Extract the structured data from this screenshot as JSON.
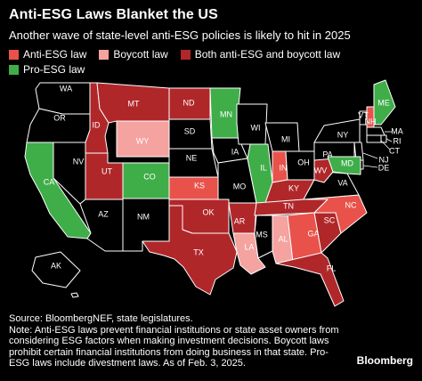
{
  "header": {
    "title": "Anti-ESG Laws Blanket the US",
    "subtitle": "Another wave of state-level anti-ESG policies is likely to hit in 2025"
  },
  "legend": [
    {
      "key": "anti",
      "label": "Anti-ESG law",
      "color": "#e8524a"
    },
    {
      "key": "boycott",
      "label": "Boycott law",
      "color": "#f4a3a0"
    },
    {
      "key": "both",
      "label": "Both anti-ESG and boycott law",
      "color": "#b0272a"
    },
    {
      "key": "pro",
      "label": "Pro-ESG law",
      "color": "#3fae49"
    }
  ],
  "colors": {
    "none": "#000000",
    "border": "#ffffff",
    "background": "#000000"
  },
  "states": [
    {
      "abbr": "WA",
      "cat": "none"
    },
    {
      "abbr": "OR",
      "cat": "none"
    },
    {
      "abbr": "CA",
      "cat": "pro"
    },
    {
      "abbr": "NV",
      "cat": "none"
    },
    {
      "abbr": "ID",
      "cat": "both"
    },
    {
      "abbr": "MT",
      "cat": "both"
    },
    {
      "abbr": "WY",
      "cat": "boycott"
    },
    {
      "abbr": "UT",
      "cat": "both"
    },
    {
      "abbr": "AZ",
      "cat": "none"
    },
    {
      "abbr": "CO",
      "cat": "pro"
    },
    {
      "abbr": "NM",
      "cat": "none"
    },
    {
      "abbr": "ND",
      "cat": "both"
    },
    {
      "abbr": "SD",
      "cat": "none"
    },
    {
      "abbr": "NE",
      "cat": "none"
    },
    {
      "abbr": "KS",
      "cat": "anti"
    },
    {
      "abbr": "OK",
      "cat": "both"
    },
    {
      "abbr": "TX",
      "cat": "both"
    },
    {
      "abbr": "MN",
      "cat": "pro"
    },
    {
      "abbr": "IA",
      "cat": "none"
    },
    {
      "abbr": "MO",
      "cat": "none"
    },
    {
      "abbr": "AR",
      "cat": "both"
    },
    {
      "abbr": "LA",
      "cat": "boycott"
    },
    {
      "abbr": "WI",
      "cat": "none"
    },
    {
      "abbr": "IL",
      "cat": "pro"
    },
    {
      "abbr": "MI",
      "cat": "none"
    },
    {
      "abbr": "IN",
      "cat": "anti"
    },
    {
      "abbr": "OH",
      "cat": "none"
    },
    {
      "abbr": "KY",
      "cat": "both"
    },
    {
      "abbr": "TN",
      "cat": "both"
    },
    {
      "abbr": "MS",
      "cat": "none"
    },
    {
      "abbr": "AL",
      "cat": "boycott"
    },
    {
      "abbr": "GA",
      "cat": "anti"
    },
    {
      "abbr": "FL",
      "cat": "both"
    },
    {
      "abbr": "SC",
      "cat": "both"
    },
    {
      "abbr": "NC",
      "cat": "anti"
    },
    {
      "abbr": "VA",
      "cat": "none"
    },
    {
      "abbr": "WV",
      "cat": "both"
    },
    {
      "abbr": "PA",
      "cat": "none"
    },
    {
      "abbr": "NY",
      "cat": "none"
    },
    {
      "abbr": "VT",
      "cat": "none"
    },
    {
      "abbr": "NH",
      "cat": "anti"
    },
    {
      "abbr": "ME",
      "cat": "pro"
    },
    {
      "abbr": "MA",
      "cat": "none"
    },
    {
      "abbr": "RI",
      "cat": "none"
    },
    {
      "abbr": "CT",
      "cat": "none"
    },
    {
      "abbr": "NJ",
      "cat": "none"
    },
    {
      "abbr": "DE",
      "cat": "none"
    },
    {
      "abbr": "MD",
      "cat": "pro"
    },
    {
      "abbr": "AK",
      "cat": "none"
    },
    {
      "abbr": "HI",
      "cat": "none"
    }
  ],
  "footnote": "Source: BloombergNEF, state legislatures.\nNote: Anti-ESG laws prevent financial institutions or state asset owners from considering ESG factors when making investment decisions. Boycott laws prohibit certain financial institutions from doing business in that state. Pro-ESG laws include divestment laws. As of Feb. 3, 2025.",
  "brand": "Bloomberg"
}
